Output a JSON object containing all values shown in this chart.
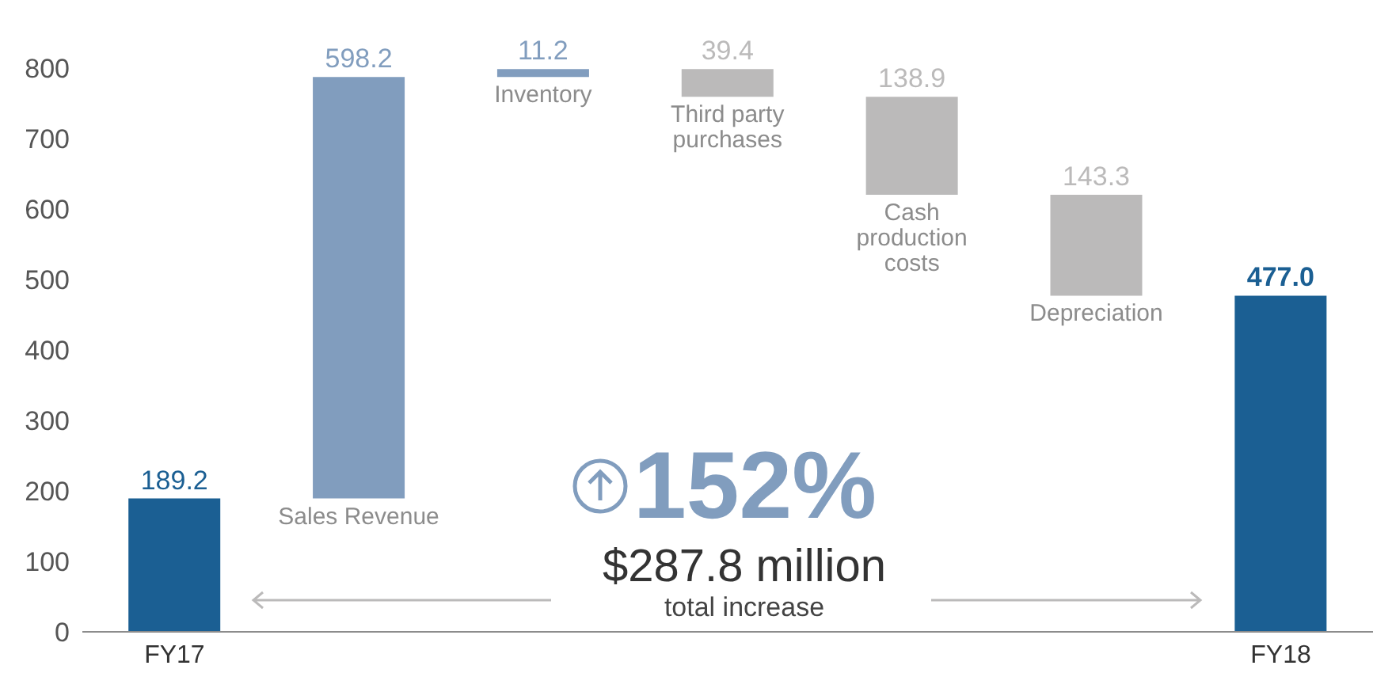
{
  "chart_data": {
    "type": "bar",
    "categories": [
      "FY17",
      "Sales Revenue",
      "Inventory",
      "Third party purchases",
      "Cash production costs",
      "Depreciation",
      "FY18"
    ],
    "values": [
      189.2,
      598.2,
      11.2,
      -39.4,
      -138.9,
      -143.3,
      477.0
    ],
    "base": [
      0,
      189.2,
      787.4,
      798.6,
      759.2,
      620.3,
      0
    ],
    "colors": [
      "#1b5f93",
      "#819dbe",
      "#819dbe",
      "#bbbaba",
      "#bbbaba",
      "#bbbaba",
      "#1b5f93"
    ],
    "value_labels": [
      "189.2",
      "598.2",
      "11.2",
      "39.4",
      "138.9",
      "143.3",
      "477.0"
    ],
    "ylim": [
      0,
      800
    ],
    "yticks": [
      0,
      100,
      200,
      300,
      400,
      500,
      600,
      700,
      800
    ],
    "annotations": [
      "152%",
      "$287.8 million",
      "total increase"
    ],
    "grid": false,
    "legend": false
  }
}
